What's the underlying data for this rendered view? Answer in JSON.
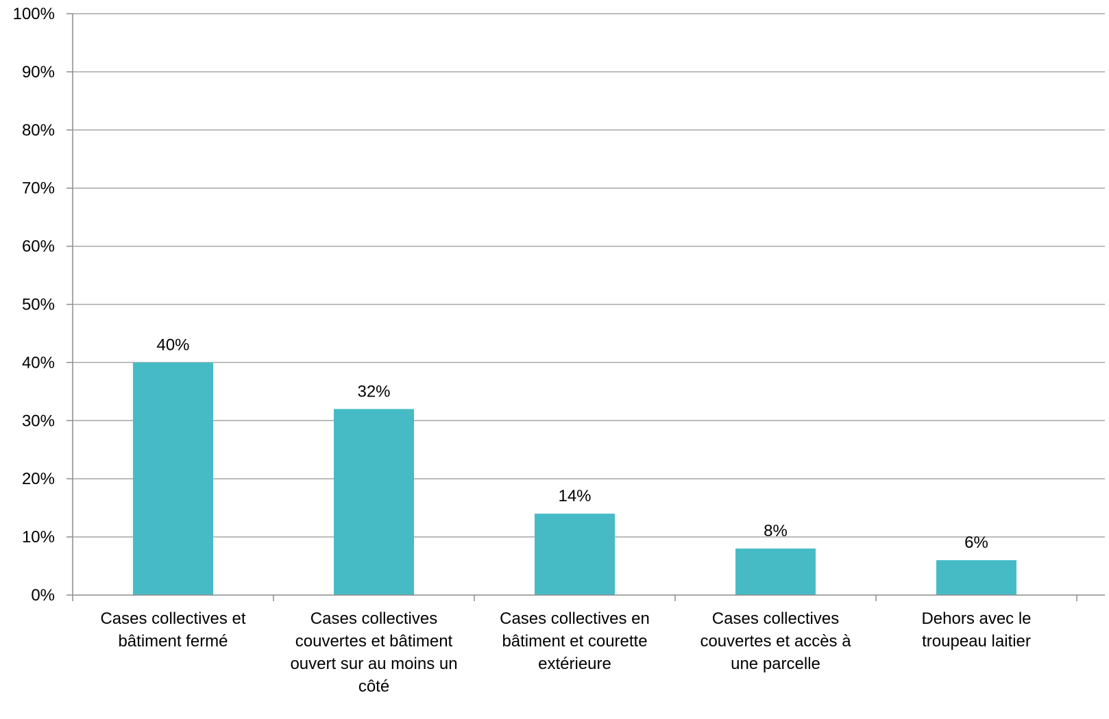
{
  "chart_data": {
    "type": "bar",
    "title": "",
    "xlabel": "",
    "ylabel": "",
    "categories": [
      [
        "Cases collectives et",
        "bâtiment fermé"
      ],
      [
        "Cases collectives",
        "couvertes et bâtiment",
        "ouvert sur au moins un",
        "côté"
      ],
      [
        "Cases collectives en",
        "bâtiment et courette",
        "extérieure"
      ],
      [
        "Cases collectives",
        "couvertes et accès à",
        "une parcelle"
      ],
      [
        "Dehors avec le",
        "troupeau laitier"
      ]
    ],
    "values": [
      40,
      32,
      14,
      8,
      6
    ],
    "data_labels": [
      "40%",
      "32%",
      "14%",
      "8%",
      "6%"
    ],
    "ylim": [
      0,
      100
    ],
    "yticks": [
      0,
      10,
      20,
      30,
      40,
      50,
      60,
      70,
      80,
      90,
      100
    ],
    "ytick_labels": [
      "0%",
      "10%",
      "20%",
      "30%",
      "40%",
      "50%",
      "60%",
      "70%",
      "80%",
      "90%",
      "100%"
    ],
    "grid": true,
    "legend": "none",
    "colors": {
      "bar": "#46BBC6",
      "grid": "#a6a6a6",
      "axis": "#8c8c8c",
      "text": "#000000"
    }
  }
}
